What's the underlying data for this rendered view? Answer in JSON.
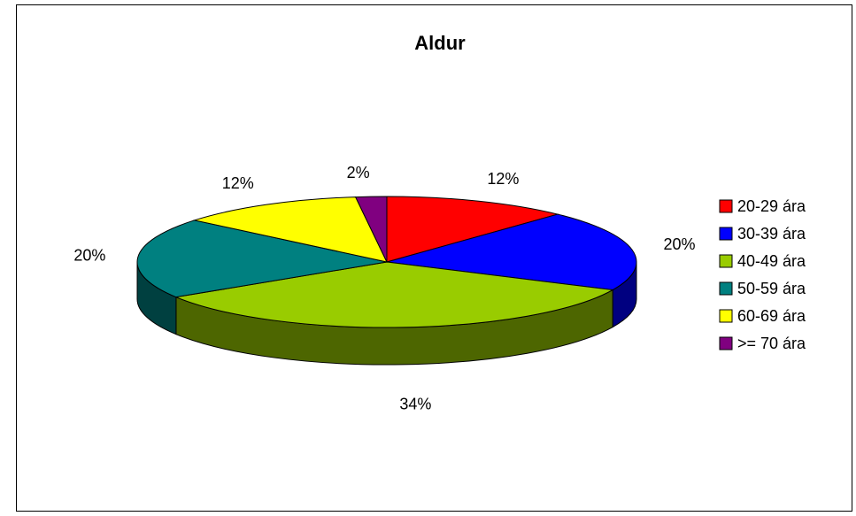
{
  "chart_data": {
    "type": "pie",
    "title": "Aldur",
    "categories": [
      "20-29 ára",
      "30-39 ára",
      "40-49 ára",
      "50-59 ára",
      "60-69 ára",
      ">= 70 ára"
    ],
    "values": [
      12,
      20,
      34,
      20,
      12,
      2
    ],
    "value_labels": [
      "12%",
      "20%",
      "34%",
      "20%",
      "12%",
      "2%"
    ],
    "colors": [
      "#ff0000",
      "#0000ff",
      "#99cc00",
      "#008080",
      "#ffff00",
      "#800080"
    ],
    "legend": "right"
  }
}
